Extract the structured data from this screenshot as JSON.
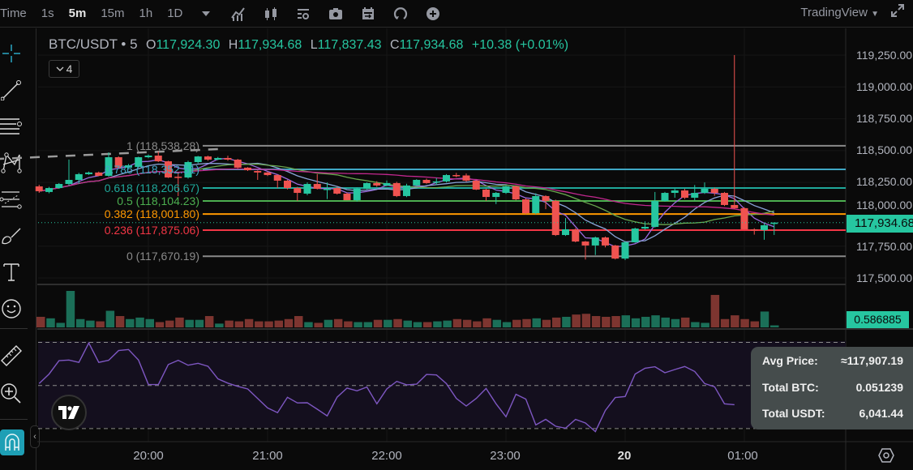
{
  "toolbar": {
    "time_label": "Time",
    "intervals": [
      "1s",
      "5m",
      "15m",
      "1h",
      "1D"
    ],
    "active_interval": "5m",
    "icons": [
      "chevron-down-icon",
      "indicators-icon",
      "candles-icon",
      "settings-icon",
      "camera-icon",
      "calendar-icon",
      "replay-icon",
      "plus-circle-icon"
    ],
    "brand": "TradingView",
    "fullscreen_icon": "expand-icon"
  },
  "left_tools": [
    "crosshair-icon",
    "trend-line-icon",
    "horizontal-lines-icon",
    "pattern-icon",
    "fib-channel-icon",
    "brush-icon",
    "text-icon",
    "emoji-icon",
    "ruler-icon",
    "zoom-in-icon",
    "magnet-icon"
  ],
  "legend": {
    "symbol": "BTC/USDT • 5",
    "o_label": "O",
    "open": "117,924.30",
    "h_label": "H",
    "high": "117,934.68",
    "l_label": "L",
    "low": "117,837.43",
    "c_label": "C",
    "close": "117,934.68",
    "change": "+10.38 (+0.01%)",
    "indicators_count": "4"
  },
  "price_axis": {
    "ticks": [
      "119,250.00",
      "119,000.00",
      "118,750.00",
      "118,500.00",
      "118,250.00",
      "118,000.00",
      "117,750.00",
      "117,500.00"
    ],
    "current_price": "117,934.68",
    "current_volume": "0.586885"
  },
  "time_axis": {
    "ticks": [
      {
        "label": "20:00",
        "time": "20:00",
        "bold": false
      },
      {
        "label": "21:00",
        "time": "21:00",
        "bold": false
      },
      {
        "label": "22:00",
        "time": "22:00",
        "bold": false
      },
      {
        "label": "23:00",
        "time": "23:00",
        "bold": false
      },
      {
        "label": "20",
        "time": "24:00",
        "bold": true
      },
      {
        "label": "01:00",
        "time": "25:00",
        "bold": false
      }
    ]
  },
  "colors": {
    "up": "#26c6a0",
    "down": "#ef5350",
    "vol_up": "#1b6f58",
    "vol_down": "#7d3530",
    "rsi": "#7e57c2",
    "ma": [
      "#9c6ade",
      "#8aa4d8",
      "#6aa84f",
      "#c2288f"
    ]
  },
  "chart_data": {
    "type": "candlestick",
    "interval": "5m",
    "first_candle_time": "19:05",
    "candles_ohlc": [
      [
        118219,
        118232,
        118168,
        118181
      ],
      [
        118175,
        118215,
        118165,
        118206
      ],
      [
        118206,
        118245,
        118200,
        118238
      ],
      [
        118238,
        118430,
        118225,
        118270
      ],
      [
        118270,
        118325,
        118240,
        118315
      ],
      [
        118315,
        118335,
        118310,
        118328
      ],
      [
        118328,
        118335,
        118300,
        118302
      ],
      [
        118302,
        118486,
        118295,
        118448
      ],
      [
        118448,
        118455,
        118360,
        118366
      ],
      [
        118366,
        118395,
        118360,
        118385
      ],
      [
        118372,
        118452,
        118365,
        118448
      ],
      [
        118448,
        118470,
        118440,
        118461
      ],
      [
        118461,
        118493,
        118410,
        118416
      ],
      [
        118416,
        118420,
        118285,
        118289
      ],
      [
        118295,
        118330,
        118143,
        118289
      ],
      [
        118289,
        118420,
        118280,
        118410
      ],
      [
        118410,
        118458,
        118400,
        118454
      ],
      [
        118454,
        118460,
        118420,
        118429
      ],
      [
        118429,
        118450,
        118425,
        118442
      ],
      [
        118442,
        118460,
        118420,
        118429
      ],
      [
        118429,
        118435,
        118360,
        118366
      ],
      [
        118366,
        118370,
        118340,
        118346
      ],
      [
        118340,
        118345,
        118270,
        118328
      ],
      [
        118328,
        118335,
        118300,
        118308
      ],
      [
        118308,
        118312,
        118205,
        118264
      ],
      [
        118264,
        118270,
        118195,
        118206
      ],
      [
        118206,
        118215,
        118105,
        118168
      ],
      [
        118162,
        118250,
        118150,
        118238
      ],
      [
        118238,
        118315,
        118195,
        118200
      ],
      [
        118200,
        118250,
        118120,
        118200
      ],
      [
        118206,
        118215,
        118155,
        118162
      ],
      [
        118162,
        118170,
        118110,
        118111
      ],
      [
        118111,
        118210,
        118100,
        118200
      ],
      [
        118200,
        118250,
        118195,
        118245
      ],
      [
        118245,
        118260,
        118215,
        118226
      ],
      [
        118226,
        118265,
        118220,
        118245
      ],
      [
        118245,
        118255,
        118135,
        118143
      ],
      [
        118143,
        118240,
        118135,
        118226
      ],
      [
        118226,
        118275,
        118220,
        118270
      ],
      [
        118270,
        118280,
        118240,
        118245
      ],
      [
        118258,
        118285,
        118230,
        118258
      ],
      [
        118258,
        118315,
        118250,
        118308
      ],
      [
        118308,
        118325,
        118290,
        118305
      ],
      [
        118305,
        118320,
        118255,
        118264
      ],
      [
        118264,
        118270,
        118190,
        118194
      ],
      [
        118194,
        118200,
        118105,
        118136
      ],
      [
        118136,
        118175,
        118080,
        118168
      ],
      [
        118168,
        118225,
        118160,
        118219
      ],
      [
        118219,
        118225,
        118110,
        118117
      ],
      [
        118117,
        118125,
        118000,
        118009
      ],
      [
        118009,
        118165,
        118000,
        118143
      ],
      [
        118143,
        118150,
        118040,
        118105
      ],
      [
        118105,
        118115,
        117830,
        117837
      ],
      [
        117837,
        117970,
        117830,
        117882
      ],
      [
        117882,
        117890,
        117780,
        117786
      ],
      [
        117786,
        117790,
        117645,
        117755
      ],
      [
        117755,
        117825,
        117680,
        117818
      ],
      [
        117818,
        117825,
        117740,
        117755
      ],
      [
        117755,
        117760,
        117645,
        117652
      ],
      [
        117652,
        117790,
        117640,
        117780
      ],
      [
        117780,
        117895,
        117775,
        117888
      ],
      [
        117888,
        117945,
        117880,
        117901
      ],
      [
        117901,
        118175,
        117895,
        118105
      ],
      [
        118105,
        118175,
        118100,
        118168
      ],
      [
        118168,
        118200,
        118130,
        118187
      ],
      [
        118187,
        118200,
        118120,
        118130
      ],
      [
        118130,
        118230,
        118110,
        118168
      ],
      [
        118168,
        118250,
        118160,
        118200
      ],
      [
        118200,
        118210,
        118145,
        118168
      ],
      [
        118168,
        118175,
        118065,
        118073
      ],
      [
        118073,
        119250,
        118040,
        118048
      ],
      [
        118048,
        118055,
        117880,
        117882
      ],
      [
        117882,
        117890,
        117840,
        117876
      ],
      [
        117876,
        117930,
        117800,
        117914
      ],
      [
        117924.3,
        117934.68,
        117837.43,
        117934.68
      ]
    ],
    "volume": [
      {
        "v": 3.08,
        "up": false
      },
      {
        "v": 2.64,
        "up": true
      },
      {
        "v": 1.32,
        "up": true
      },
      {
        "v": 10.63,
        "up": true
      },
      {
        "v": 2.42,
        "up": true
      },
      {
        "v": 1.98,
        "up": true
      },
      {
        "v": 1.76,
        "up": false
      },
      {
        "v": 4.84,
        "up": true
      },
      {
        "v": 3.3,
        "up": false
      },
      {
        "v": 2.42,
        "up": true
      },
      {
        "v": 2.86,
        "up": true
      },
      {
        "v": 2.42,
        "up": true
      },
      {
        "v": 1.54,
        "up": false
      },
      {
        "v": 1.98,
        "up": false
      },
      {
        "v": 2.86,
        "up": false
      },
      {
        "v": 2.2,
        "up": true
      },
      {
        "v": 2.2,
        "up": true
      },
      {
        "v": 3.3,
        "up": false
      },
      {
        "v": 1.1,
        "up": true
      },
      {
        "v": 1.98,
        "up": false
      },
      {
        "v": 1.76,
        "up": false
      },
      {
        "v": 2.42,
        "up": false
      },
      {
        "v": 1.76,
        "up": false
      },
      {
        "v": 1.76,
        "up": false
      },
      {
        "v": 1.98,
        "up": false
      },
      {
        "v": 2.42,
        "up": false
      },
      {
        "v": 3.3,
        "up": false
      },
      {
        "v": 1.54,
        "up": true
      },
      {
        "v": 1.32,
        "up": false
      },
      {
        "v": 2.2,
        "up": true
      },
      {
        "v": 2.42,
        "up": false
      },
      {
        "v": 1.76,
        "up": false
      },
      {
        "v": 1.54,
        "up": true
      },
      {
        "v": 1.54,
        "up": true
      },
      {
        "v": 2.2,
        "up": false
      },
      {
        "v": 2.2,
        "up": true
      },
      {
        "v": 2.42,
        "up": false
      },
      {
        "v": 1.98,
        "up": true
      },
      {
        "v": 1.54,
        "up": true
      },
      {
        "v": 1.54,
        "up": false
      },
      {
        "v": 1.76,
        "up": true
      },
      {
        "v": 1.98,
        "up": true
      },
      {
        "v": 2.42,
        "up": false
      },
      {
        "v": 2.2,
        "up": false
      },
      {
        "v": 1.76,
        "up": false
      },
      {
        "v": 2.64,
        "up": false
      },
      {
        "v": 2.2,
        "up": true
      },
      {
        "v": 1.54,
        "up": true
      },
      {
        "v": 2.2,
        "up": false
      },
      {
        "v": 2.42,
        "up": false
      },
      {
        "v": 2.64,
        "up": true
      },
      {
        "v": 2.2,
        "up": false
      },
      {
        "v": 2.86,
        "up": false
      },
      {
        "v": 3.08,
        "up": true
      },
      {
        "v": 3.74,
        "up": false
      },
      {
        "v": 3.96,
        "up": false
      },
      {
        "v": 3.3,
        "up": false
      },
      {
        "v": 3.08,
        "up": false
      },
      {
        "v": 3.3,
        "up": false
      },
      {
        "v": 3.52,
        "up": true
      },
      {
        "v": 2.64,
        "up": true
      },
      {
        "v": 3.08,
        "up": true
      },
      {
        "v": 3.52,
        "up": true
      },
      {
        "v": 2.86,
        "up": true
      },
      {
        "v": 2.42,
        "up": true
      },
      {
        "v": 2.86,
        "up": false
      },
      {
        "v": 1.54,
        "up": true
      },
      {
        "v": 1.32,
        "up": true
      },
      {
        "v": 9.46,
        "up": false
      },
      {
        "v": 2.42,
        "up": false
      },
      {
        "v": 3.52,
        "up": false
      },
      {
        "v": 2.42,
        "up": false
      },
      {
        "v": 1.76,
        "up": false
      },
      {
        "v": 4.62,
        "up": true
      },
      {
        "v": 0.586885,
        "up": true
      }
    ],
    "rsi": [
      50.9,
      55.3,
      61.5,
      61.8,
      60.7,
      69.7,
      60.7,
      61.7,
      66.2,
      66.7,
      61.8,
      50.5,
      50.4,
      59.7,
      61.7,
      59.4,
      60.3,
      58.9,
      53.1,
      51.1,
      49.6,
      48.4,
      44.0,
      39.6,
      37.4,
      44.5,
      41.9,
      42.0,
      39.0,
      35.9,
      44.6,
      48.8,
      47.5,
      49.3,
      41.5,
      48.4,
      51.9,
      50.3,
      50.6,
      55.1,
      54.9,
      50.9,
      44.0,
      40.5,
      44.0,
      48.6,
      41.5,
      35.5,
      45.9,
      43.7,
      31.7,
      34.3,
      31.1,
      30.2,
      34.3,
      32.6,
      28.6,
      38.4,
      44.4,
      44.9,
      55.3,
      58.0,
      58.7,
      55.9,
      57.4,
      58.8,
      56.5,
      50.9,
      49.4,
      41.5,
      41.1
    ],
    "rsi_levels": [
      70,
      50,
      30
    ],
    "ylim": [
      117400,
      119330
    ],
    "fib_levels": [
      {
        "ratio": "1",
        "price": "118,538.28",
        "value": 118538.28,
        "color": "#8a8a8a"
      },
      {
        "ratio": "0.786",
        "price": "118,352.51",
        "value": 118352.51,
        "color": "#3fa7c4"
      },
      {
        "ratio": "0.618",
        "price": "118,206.67",
        "value": 118206.67,
        "color": "#1fa89a"
      },
      {
        "ratio": "0.5",
        "price": "118,104.23",
        "value": 118104.23,
        "color": "#4caf50"
      },
      {
        "ratio": "0.382",
        "price": "118,001.80",
        "value": 118001.8,
        "color": "#ff9800"
      },
      {
        "ratio": "0.236",
        "price": "117,875.06",
        "value": 117875.06,
        "color": "#f23645"
      },
      {
        "ratio": "0",
        "price": "117,670.19",
        "value": 117670.19,
        "color": "#8a8a8a"
      }
    ],
    "trend_line": {
      "from": {
        "time": "20:35",
        "price": 118512
      },
      "to": {
        "time": "00:20",
        "price": 117665
      }
    }
  },
  "popup": {
    "avg_price_label": "Avg Price:",
    "avg_price": "≈117,907.19",
    "total_btc_label": "Total BTC:",
    "total_btc": "0.051239",
    "total_usdt_label": "Total USDT:",
    "total_usdt": "6,041.44"
  }
}
